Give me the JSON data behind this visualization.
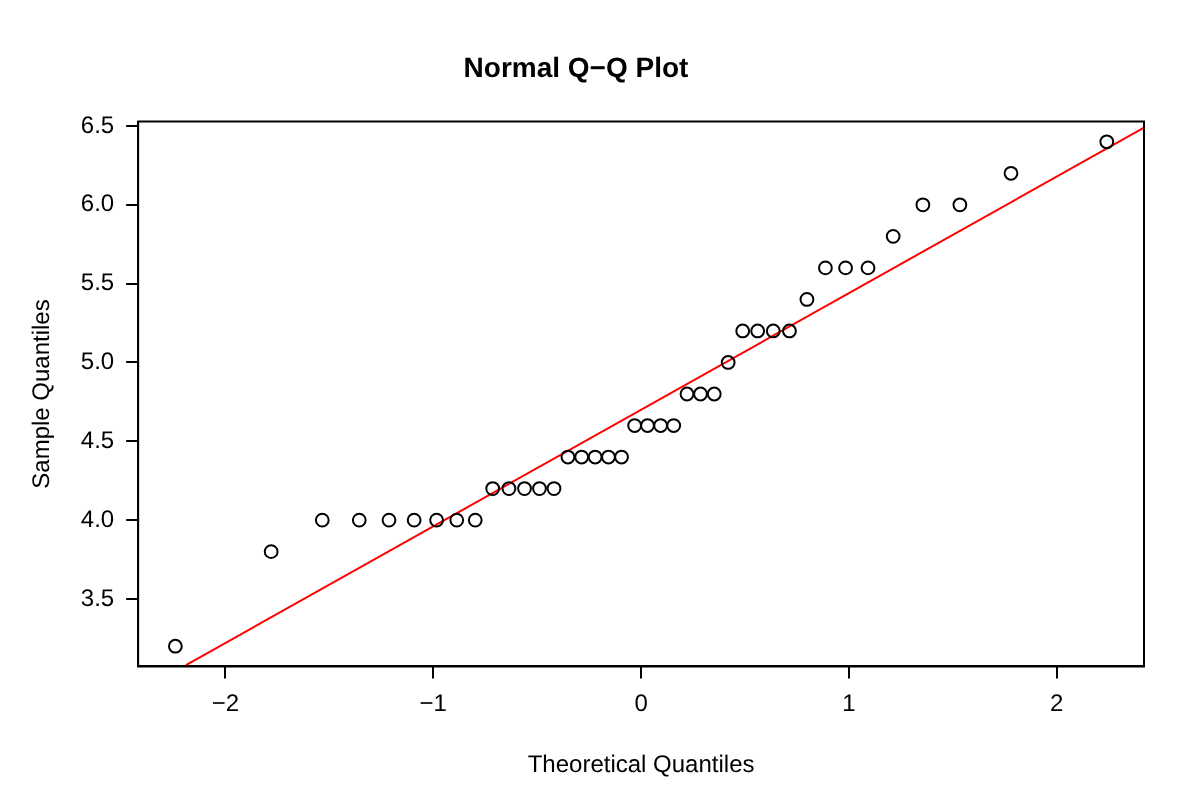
{
  "chart_data": {
    "type": "scatter",
    "title": "Normal Q−Q Plot",
    "xlabel": "Theoretical Quantiles",
    "ylabel": "Sample Quantiles",
    "xlim": [
      -2.42,
      2.42
    ],
    "ylim": [
      3.072,
      6.528
    ],
    "xticks": [
      {
        "value": -2,
        "label": "−2"
      },
      {
        "value": -1,
        "label": "−1"
      },
      0,
      1,
      2
    ],
    "yticks": [
      3.5,
      {
        "value": 4,
        "label": "4.0"
      },
      4.5,
      {
        "value": 5,
        "label": "5.0"
      },
      5.5,
      {
        "value": 6,
        "label": "6.0"
      },
      6.5
    ],
    "legend": false,
    "series": [
      {
        "type": "scatter",
        "marker": "circle",
        "color": "#000000",
        "x": [
          -2.241,
          -1.78,
          -1.534,
          -1.356,
          -1.213,
          -1.092,
          -0.984,
          -0.887,
          -0.798,
          -0.714,
          -0.636,
          -0.561,
          -0.489,
          -0.419,
          -0.352,
          -0.286,
          -0.221,
          -0.157,
          -0.094,
          -0.031,
          0.031,
          0.094,
          0.157,
          0.221,
          0.286,
          0.352,
          0.419,
          0.489,
          0.561,
          0.636,
          0.714,
          0.798,
          0.887,
          0.984,
          1.092,
          1.213,
          1.356,
          1.534,
          1.78,
          2.241
        ],
        "values": [
          3.2,
          3.8,
          4.0,
          4.0,
          4.0,
          4.0,
          4.0,
          4.0,
          4.0,
          4.2,
          4.2,
          4.2,
          4.2,
          4.2,
          4.4,
          4.4,
          4.4,
          4.4,
          4.4,
          4.6,
          4.6,
          4.6,
          4.6,
          4.8,
          4.8,
          4.8,
          5.0,
          5.2,
          5.2,
          5.2,
          5.2,
          5.4,
          5.6,
          5.6,
          5.6,
          5.8,
          6.0,
          6.0,
          6.2,
          6.4
        ]
      },
      {
        "type": "line",
        "marker": "none",
        "color": "#ff0000",
        "x": [
          -2.19,
          2.42
        ],
        "values": [
          3.08,
          6.49
        ]
      }
    ]
  }
}
